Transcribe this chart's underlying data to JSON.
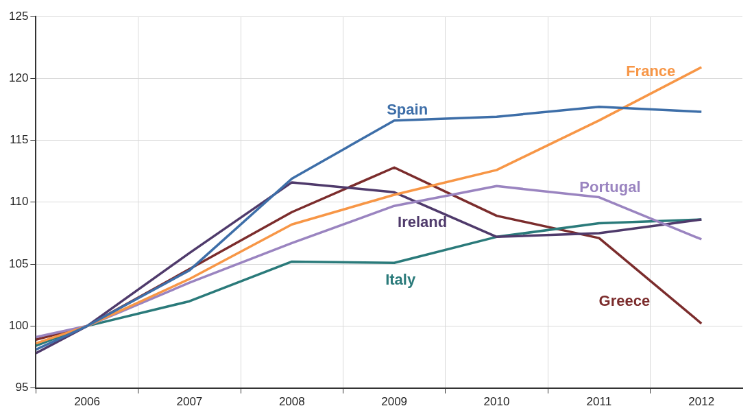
{
  "chart_data": {
    "type": "line",
    "x": [
      2005.5,
      2006,
      2007,
      2008,
      2009,
      2010,
      2011,
      2012
    ],
    "xlim": [
      2005.5,
      2012.4
    ],
    "xticks": [
      {
        "value": 2005.5,
        "label": null
      },
      2006,
      {
        "value": 2006.5,
        "label": null
      },
      2007,
      {
        "value": 2007.5,
        "label": null
      },
      2008,
      {
        "value": 2008.5,
        "label": null
      },
      2009,
      {
        "value": 2009.5,
        "label": null
      },
      2010,
      {
        "value": 2010.5,
        "label": null
      },
      2011,
      {
        "value": 2011.5,
        "label": null
      },
      2012
    ],
    "ylim": [
      95,
      125
    ],
    "yticks": [
      95,
      100,
      105,
      110,
      115,
      120,
      125
    ],
    "grid": true,
    "legend": false,
    "marker": "none",
    "line_style": "solid",
    "series": [
      {
        "name": "Spain",
        "color": "#3d6ea8",
        "values": [
          98.1,
          100,
          104.5,
          111.9,
          116.6,
          116.9,
          117.7,
          117.3
        ]
      },
      {
        "name": "France",
        "color": "#f79646",
        "values": [
          98.6,
          100,
          103.8,
          108.2,
          110.6,
          112.6,
          116.6,
          120.9
        ]
      },
      {
        "name": "Portugal",
        "color": "#9a84c0",
        "values": [
          99.1,
          100,
          103.5,
          106.7,
          109.7,
          111.3,
          110.4,
          107.0
        ]
      },
      {
        "name": "Ireland",
        "color": "#4f3a6b",
        "values": [
          97.8,
          100,
          105.9,
          111.6,
          110.8,
          107.2,
          107.5,
          108.6
        ]
      },
      {
        "name": "Italy",
        "color": "#2a7a7a",
        "values": [
          98.4,
          100,
          102.0,
          105.2,
          105.1,
          107.2,
          108.3,
          108.6
        ]
      },
      {
        "name": "Greece",
        "color": "#7b2c2c",
        "values": [
          98.9,
          100,
          104.6,
          109.2,
          112.8,
          108.9,
          107.1,
          100.2
        ]
      }
    ]
  }
}
